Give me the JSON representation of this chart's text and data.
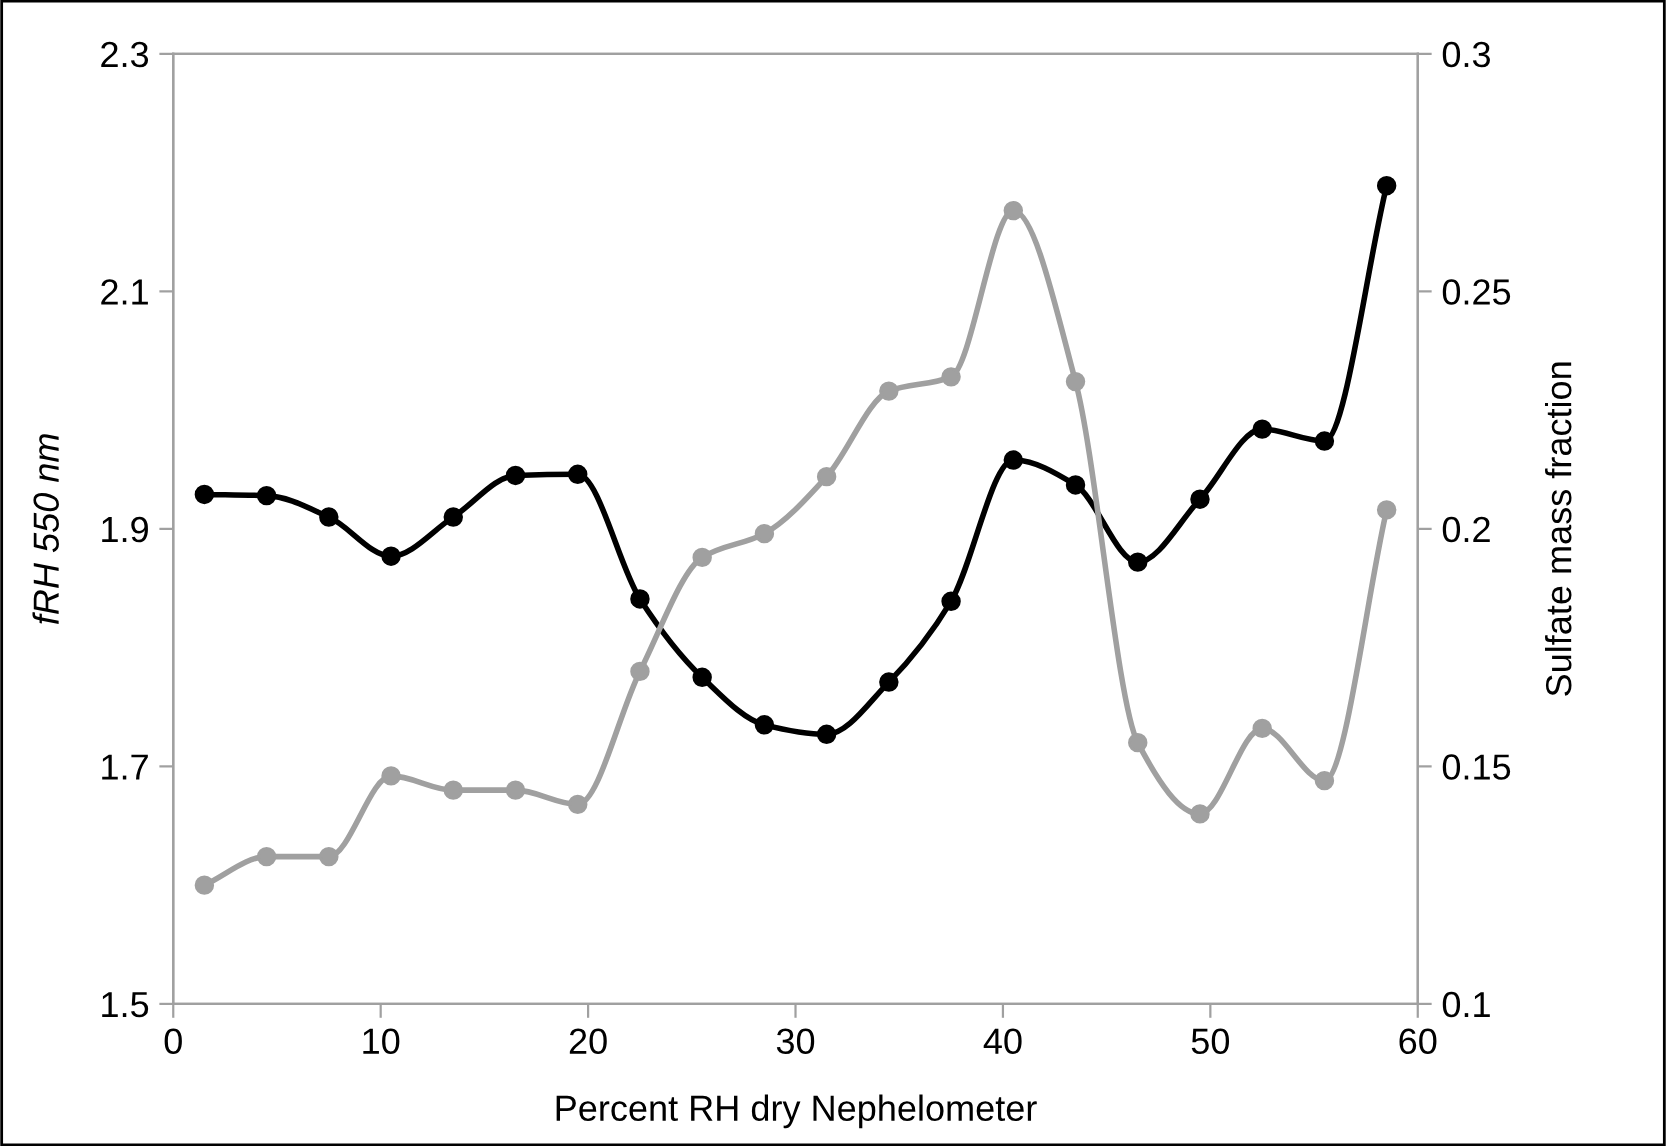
{
  "chart_data": {
    "type": "line",
    "xlabel": "Percent RH dry Nephelometer",
    "ylabel": "fRH 550 nm",
    "y2label": "Sulfate mass fraction",
    "xlim": [
      0,
      60
    ],
    "xticks": [
      0,
      10,
      20,
      30,
      40,
      50,
      60
    ],
    "ylim": [
      1.5,
      2.3
    ],
    "yticks": [
      {
        "value": 1.5,
        "label": "1.5"
      },
      {
        "value": 1.7,
        "label": "1.7"
      },
      {
        "value": 1.9,
        "label": "1.9"
      },
      {
        "value": 2.1,
        "label": "2.1"
      },
      {
        "value": 2.3,
        "label": "2.3"
      }
    ],
    "y2lim": [
      0.1,
      0.3
    ],
    "y2ticks": [
      {
        "value": 0.1,
        "label": "0.1"
      },
      {
        "value": 0.15,
        "label": "0.15"
      },
      {
        "value": 0.2,
        "label": "0.2"
      },
      {
        "value": 0.25,
        "label": "0.25"
      },
      {
        "value": 0.3,
        "label": "0.3"
      }
    ],
    "x": [
      1.5,
      4.5,
      7.5,
      10.5,
      13.5,
      16.5,
      19.5,
      22.5,
      25.5,
      28.5,
      31.5,
      34.5,
      37.5,
      40.5,
      43.5,
      46.5,
      49.5,
      52.5,
      55.5,
      58.5
    ],
    "marker": "circle",
    "line_style": "solid",
    "grid": false,
    "legend": false,
    "series": [
      {
        "color": "#000000",
        "values": [
          1.929,
          1.928,
          1.91,
          1.877,
          1.91,
          1.945,
          1.946,
          1.841,
          1.775,
          1.735,
          1.727,
          1.771,
          1.839,
          1.958,
          1.937,
          1.872,
          1.925,
          1.984,
          1.974,
          2.189
        ]
      },
      {
        "color": "#a0a0a0",
        "axis": "y2",
        "values": [
          0.125,
          0.131,
          0.131,
          0.148,
          0.145,
          0.145,
          0.142,
          0.17,
          0.194,
          0.199,
          0.211,
          0.229,
          0.232,
          0.267,
          0.231,
          0.155,
          0.14,
          0.158,
          0.147,
          0.204
        ]
      }
    ]
  }
}
